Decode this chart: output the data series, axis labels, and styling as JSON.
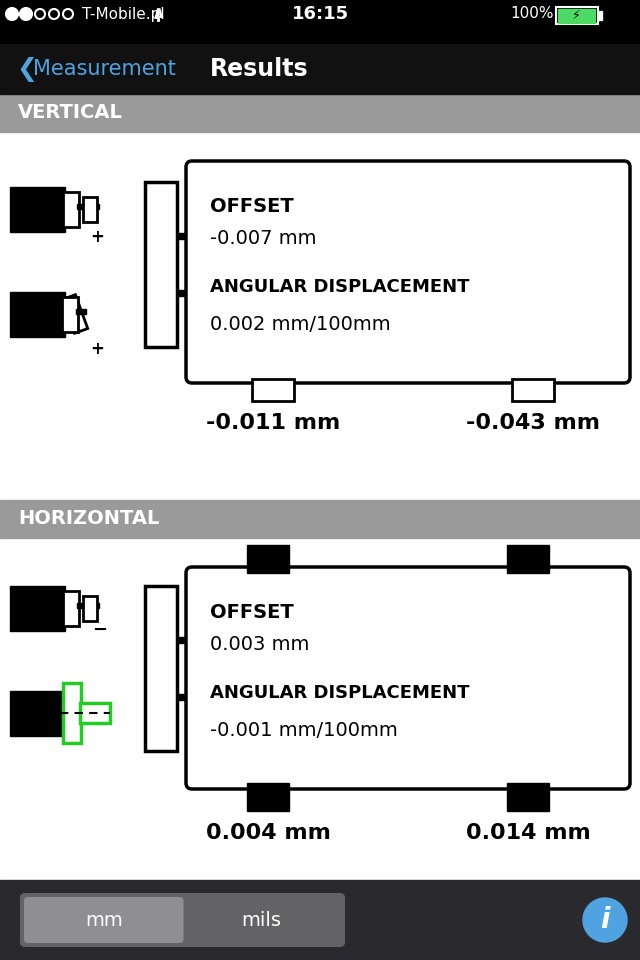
{
  "status_bar": {
    "carrier": "T-Mobile.pl",
    "time": "16:15",
    "battery": "100%",
    "bg_color": "#000000"
  },
  "nav_bar": {
    "back_text": "Measurement",
    "title": "Results",
    "bg_color": "#111111",
    "back_color": "#4fa3e0",
    "title_color": "#ffffff"
  },
  "section_header_bg": "#9a9a9a",
  "section_header_text_color": "#ffffff",
  "content_bg": "#ffffff",
  "vertical": {
    "label": "VERTICAL",
    "offset_label": "OFFSET",
    "offset_value": "-0.007 mm",
    "angular_label": "ANGULAR DISPLACEMENT",
    "angular_value": "0.002 mm/100mm",
    "left_value": "-0.011 mm",
    "right_value": "-0.043 mm"
  },
  "horizontal": {
    "label": "HORIZONTAL",
    "offset_label": "OFFSET",
    "offset_value": "0.003 mm",
    "angular_label": "ANGULAR DISPLACEMENT",
    "angular_value": "-0.001 mm/100mm",
    "left_value": "0.004 mm",
    "right_value": "0.014 mm"
  },
  "bottom_bar": {
    "bg_color": "#2a2a2e",
    "mm_text": "mm",
    "mils_text": "mils",
    "segment_bg": "#636366",
    "info_color": "#4fa3e0"
  },
  "green_color": "#22cc22"
}
